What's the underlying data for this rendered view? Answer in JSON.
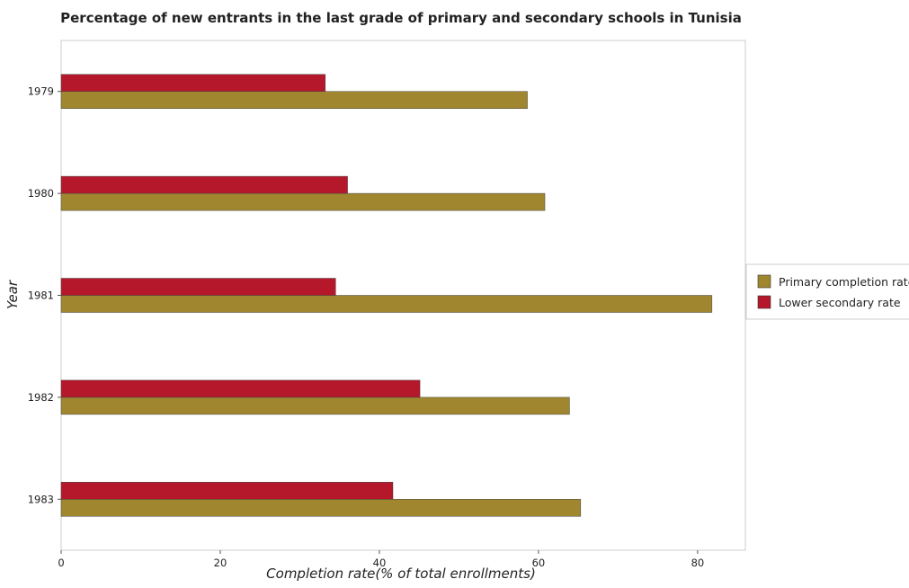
{
  "chart_data": {
    "type": "bar",
    "orientation": "horizontal",
    "title": "Percentage of new entrants in the last grade of primary  and secondary schools in Tunisia",
    "xlabel": "Completion rate(% of total enrollments)",
    "ylabel": "Year",
    "categories": [
      "1979",
      "1980",
      "1981",
      "1982",
      "1983"
    ],
    "series": [
      {
        "name": "Primary completion rate",
        "color": "#a0862f",
        "values": [
          58.6,
          60.8,
          81.8,
          63.9,
          65.3
        ]
      },
      {
        "name": "Lower secondary rate",
        "color": "#b5172b",
        "values": [
          33.2,
          36.0,
          34.5,
          45.1,
          41.7
        ]
      }
    ],
    "xlim": [
      0,
      86
    ],
    "xticks": [
      0,
      20,
      40,
      60,
      80
    ],
    "grid": false,
    "legend_position": "right"
  }
}
